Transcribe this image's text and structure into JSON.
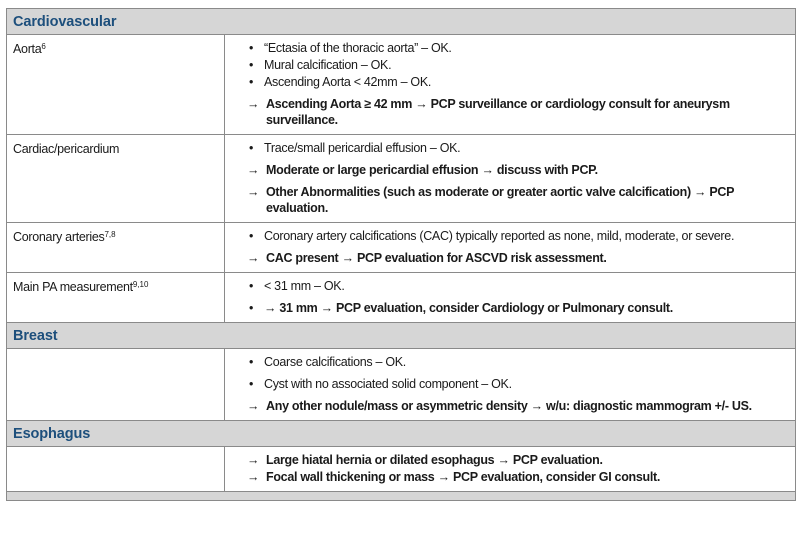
{
  "sections": [
    {
      "title": "Cardiovascular",
      "rows": [
        {
          "label": "Aorta",
          "sup": "6",
          "items": [
            {
              "type": "bullet",
              "text": "“Ectasia of the thoracic aorta” – OK."
            },
            {
              "type": "bullet",
              "text": "Mural calcification – OK."
            },
            {
              "type": "bullet",
              "text": "Ascending Aorta < 42mm – OK."
            },
            {
              "type": "arrow",
              "bold": true,
              "text": "Ascending Aorta ≥ 42 mm → PCP surveillance or cardiology consult for aneurysm surveillance."
            }
          ]
        },
        {
          "label": "Cardiac/pericardium",
          "sup": "",
          "items": [
            {
              "type": "bullet",
              "text": "Trace/small pericardial effusion – OK."
            },
            {
              "type": "arrow",
              "bold": true,
              "text": "Moderate or large pericardial effusion → discuss with PCP."
            },
            {
              "type": "arrow",
              "bold": true,
              "text": "Other Abnormalities (such as moderate or greater aortic valve calcification) → PCP evaluation."
            }
          ]
        },
        {
          "label": "Coronary arteries",
          "sup": "7,8",
          "items": [
            {
              "type": "bullet",
              "text": "Coronary artery calcifications (CAC) typically reported as none, mild, moderate, or severe."
            },
            {
              "type": "arrow",
              "bold": true,
              "text": "CAC present →  PCP evaluation for ASCVD risk assessment."
            }
          ]
        },
        {
          "label": "Main PA measurement",
          "sup": "9,10",
          "items": [
            {
              "type": "bullet",
              "text": "< 31 mm – OK."
            },
            {
              "type": "bullet",
              "bold": true,
              "text": "→ 31 mm → PCP evaluation, consider Cardiology or Pulmonary consult."
            }
          ]
        }
      ]
    },
    {
      "title": "Breast",
      "rows": [
        {
          "label": "",
          "sup": "",
          "items": [
            {
              "type": "bullet",
              "text": "Coarse calcifications – OK."
            },
            {
              "type": "bullet",
              "text": "Cyst with no associated solid component – OK."
            },
            {
              "type": "arrow",
              "bold": true,
              "text": "Any other nodule/mass or asymmetric density → w/u: diagnostic mammogram +/- US."
            }
          ]
        }
      ]
    },
    {
      "title": "Esophagus",
      "rows": [
        {
          "label": "",
          "sup": "",
          "items": [
            {
              "type": "arrow",
              "bold": true,
              "text": "Large hiatal hernia or dilated esophagus → PCP evaluation."
            },
            {
              "type": "arrow",
              "bold": true,
              "text": "Focal wall thickening or mass → PCP evaluation, consider GI consult."
            }
          ]
        }
      ]
    }
  ],
  "markers": {
    "bullet": "•",
    "arrow": "→"
  },
  "colors": {
    "section_text": "#1d4f7c",
    "section_bg": "#d6d6d6",
    "border": "#8a8a8a"
  }
}
